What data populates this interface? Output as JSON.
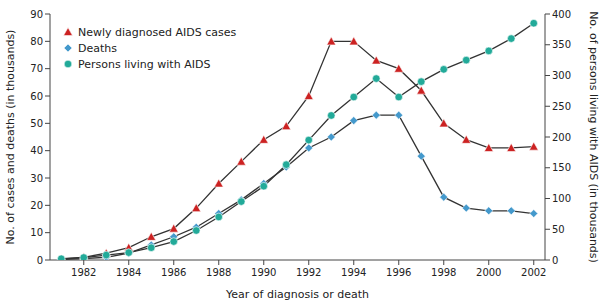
{
  "chart_data": {
    "type": "line",
    "x_label": "Year of diagnosis or death",
    "y_label": "No. of cases and deaths (in thousands)",
    "y2_label": "No. of persons living with AIDS (in thousands)",
    "x": [
      1981,
      1982,
      1983,
      1984,
      1985,
      1986,
      1987,
      1988,
      1989,
      1990,
      1991,
      1992,
      1993,
      1994,
      1995,
      1996,
      1997,
      1998,
      1999,
      2000,
      2001,
      2002
    ],
    "series": [
      {
        "name": "Newly diagnosed AIDS cases",
        "color": "#cc2222",
        "marker": "triangle",
        "values": [
          0.3,
          1.0,
          2.5,
          4.5,
          8.5,
          11.5,
          19.0,
          28.0,
          36.0,
          44.0,
          49.0,
          60.0,
          80.0,
          80.0,
          73.0,
          70.0,
          62.0,
          50.0,
          44.0,
          41.0,
          41.0,
          41.5
        ]
      },
      {
        "name": "Deaths",
        "color": "#4499cc",
        "marker": "diamond",
        "values": [
          0.2,
          0.5,
          1.0,
          2.5,
          5.5,
          8.5,
          12.0,
          17.0,
          22.0,
          28.0,
          34.0,
          41.0,
          45.0,
          51.0,
          53.0,
          53.0,
          38.0,
          23.0,
          19.0,
          18.0,
          18.0,
          17.0
        ]
      },
      {
        "name": "Persons living with AIDS",
        "color": "#22aa99",
        "marker": "circle",
        "axis": "y2",
        "values": [
          2,
          4,
          8,
          12,
          20,
          30,
          48,
          70,
          95,
          120,
          155,
          195,
          235,
          265,
          295,
          265,
          290,
          310,
          325,
          340,
          360,
          385
        ]
      }
    ],
    "xlim": [
      1980.5,
      2002.5
    ],
    "xticks": [
      1982,
      1984,
      1986,
      1988,
      1990,
      1992,
      1994,
      1996,
      1998,
      2000,
      2002
    ],
    "ylim": [
      0,
      90
    ],
    "yticks": [
      0,
      10,
      20,
      30,
      40,
      50,
      60,
      70,
      80,
      90
    ],
    "y2lim": [
      0,
      400
    ],
    "y2ticks": [
      0,
      50,
      100,
      150,
      200,
      250,
      300,
      350,
      400
    ],
    "grid": false,
    "legend": "upper left"
  }
}
